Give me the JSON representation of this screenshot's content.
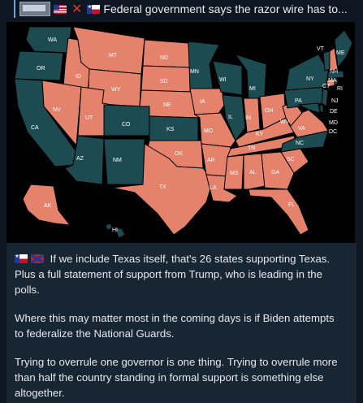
{
  "reply": {
    "text": "Federal government says the razor wire has to...",
    "icons": [
      "thumbnail",
      "us-flag-icon",
      "red-cross-icon",
      "texas-flag-icon"
    ]
  },
  "map": {
    "colors": {
      "support": "#e5826c",
      "other": "#1c4b52",
      "background": "#000000",
      "labels": "#ffffff"
    },
    "labels": [
      "WA",
      "MT",
      "ND",
      "MN",
      "VT",
      "ME",
      "OR",
      "ID",
      "SD",
      "WI",
      "MI",
      "NY",
      "MA",
      "NH",
      "WY",
      "CT",
      "RI",
      "NJ",
      "PA",
      "NE",
      "IA",
      "NV",
      "OH",
      "DE",
      "CA",
      "UT",
      "CO",
      "IL",
      "IN",
      "MD",
      "KS",
      "MO",
      "WV",
      "VA",
      "KY",
      "DC",
      "NC",
      "TN",
      "AZ",
      "OK",
      "NM",
      "AR",
      "SC",
      "MS",
      "AL",
      "GA",
      "TX",
      "LA",
      "AK",
      "FL",
      "HI"
    ]
  },
  "message": {
    "line1_icons": [
      "texas-flag-icon",
      "confederate-flag-icon"
    ],
    "paragraph1": "If we include Texas itself, that's 26 states supporting Texas. Plus a full statement of support from Trump, who is leading in the polls.",
    "paragraph2": "Where this may matter most in the coming days is if Biden attempts to federalize the National Guards.",
    "paragraph3": "Trying to overrule one governor is one thing. Trying to overrule more than half the country standing in formal support is something else altogether."
  }
}
